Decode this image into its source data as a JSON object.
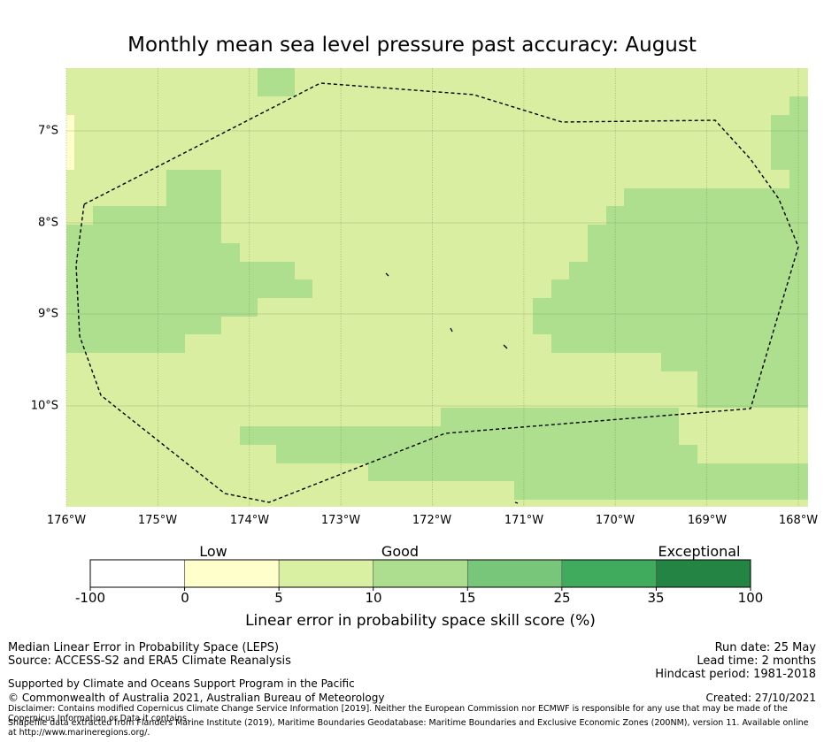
{
  "title": "Monthly mean sea level pressure past accuracy: August",
  "map": {
    "lon_labels": [
      "176°W",
      "175°W",
      "174°W",
      "173°W",
      "172°W",
      "171°W",
      "170°W",
      "169°W",
      "168°W"
    ],
    "lat_labels": [
      "7°S",
      "8°S",
      "9°S",
      "10°S"
    ],
    "lon_range": [
      -176,
      -168
    ],
    "lat_range": [
      -11.1,
      -6.3
    ],
    "grid": true,
    "boundary": "dashed black line (Maritime Boundaries EEZ)",
    "colors": {
      "light": "#d9eea0",
      "mid": "#addf8e",
      "pale_yellow": "#ffffcc"
    }
  },
  "colorbar": {
    "category_labels": [
      "Low",
      "Good",
      "Exceptional"
    ],
    "ticks": [
      "-100",
      "0",
      "5",
      "10",
      "15",
      "25",
      "35",
      "100"
    ],
    "colors": [
      "#ffffff",
      "#ffffcc",
      "#d9f0a3",
      "#addd8e",
      "#78c679",
      "#41ab5d",
      "#238443"
    ],
    "title": "Linear error in probability space skill score (%)"
  },
  "footer": {
    "line1": "Median Linear Error in Probability Space (LEPS)",
    "line2": "Source: ACCESS-S2 and ERA5 Climate Reanalysis",
    "line3": "Supported by Climate and Oceans Support Program in the Pacific",
    "line4": "© Commonwealth of Australia 2021, Australian Bureau of Meteorology",
    "disclaimer": "Disclaimer: Contains modified Copernicus Climate Change Service Information [2019]. Neither the European Commission nor ECMWF is responsible for any use that may be made of the Copernicus Information or Data it contains.",
    "shapefile": "Shapefile data extracted from Flanders Marine Institute (2019), Maritime Boundaries Geodatabase: Maritime Boundaries and Exclusive Economic Zones (200NM), version 11. Available online at http://www.marineregions.org/.",
    "run_date": "Run date: 25 May",
    "lead_time": "Lead time: 2 months",
    "hindcast": "Hindcast period: 1981-2018",
    "created": "Created: 27/10/2021"
  }
}
